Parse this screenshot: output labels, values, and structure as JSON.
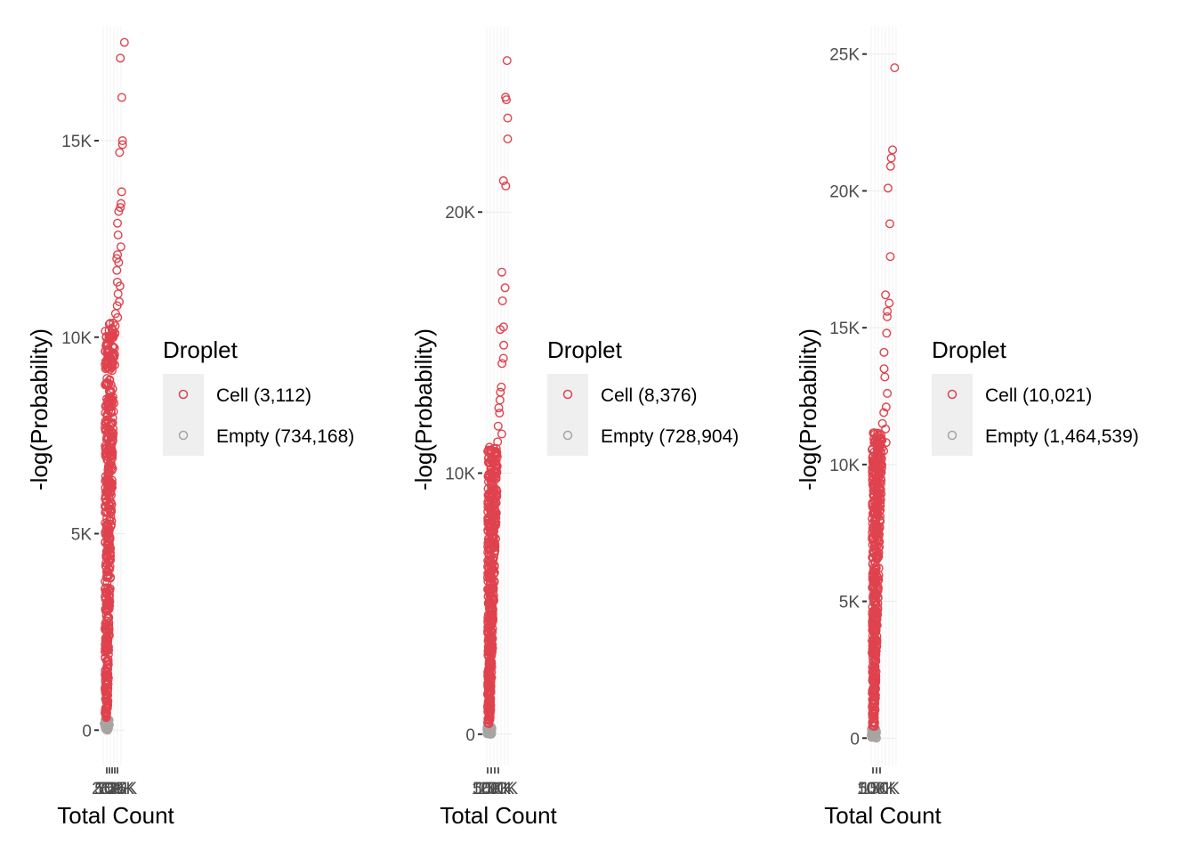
{
  "colors": {
    "cell": "#DF434E",
    "empty": "#A8A4A1",
    "grid": "#EBEBEB",
    "legend_key_bg": "#EFEFEF",
    "text": "#000000",
    "tick_text": "#4D4D4D"
  },
  "chart_data": [
    {
      "type": "scatter",
      "xlabel": "Total Count",
      "ylabel": "-log(Probability)",
      "ylim": [
        -900,
        17900
      ],
      "yticks": [
        0,
        5000,
        10000,
        15000
      ],
      "ytick_labels": [
        "0",
        "5K",
        "10K",
        "15K"
      ],
      "xtick_labels": [
        "25K",
        "50K",
        "75K",
        "100K",
        "125K"
      ],
      "grid": true,
      "legend": {
        "title": "Droplet",
        "placement": "right",
        "entries": [
          {
            "label": "Cell (3,112)",
            "color": "#DF434E"
          },
          {
            "label": "Empty (734,168)",
            "color": "#A8A4A1"
          }
        ]
      },
      "series": [
        {
          "name": "Cell (3,112)",
          "y_range": [
            300,
            10400
          ],
          "points": [
            17500,
            17100,
            16100,
            15000,
            14900,
            14700,
            13700,
            13400,
            13300,
            13200,
            12900,
            12600,
            12300,
            12100,
            12000,
            11900,
            11700,
            11400,
            11300,
            11100,
            10900,
            10800,
            10600,
            10500
          ]
        },
        {
          "name": "Empty (734,168)",
          "y_range": [
            0,
            300
          ]
        }
      ]
    },
    {
      "type": "scatter",
      "xlabel": "Total Count",
      "ylabel": "-log(Probability)",
      "ylim": [
        -1200,
        27100
      ],
      "yticks": [
        0,
        10000,
        20000
      ],
      "ytick_labels": [
        "0",
        "10K",
        "20K"
      ],
      "xtick_labels": [
        "50K",
        "100K",
        "150K",
        "200K"
      ],
      "grid": true,
      "legend": {
        "title": "Droplet",
        "placement": "right",
        "entries": [
          {
            "label": "Cell (8,376)",
            "color": "#DF434E"
          },
          {
            "label": "Empty (728,904)",
            "color": "#A8A4A1"
          }
        ]
      },
      "series": [
        {
          "name": "Cell (8,376)",
          "y_range": [
            400,
            11000
          ],
          "points": [
            25800,
            24400,
            24300,
            23600,
            22800,
            21200,
            21000,
            17700,
            17100,
            16600,
            15600,
            15500,
            14900,
            14400,
            14200,
            13300,
            13100,
            12800,
            12500,
            12300,
            11800,
            11500,
            11200
          ]
        },
        {
          "name": "Empty (728,904)",
          "y_range": [
            0,
            300
          ]
        }
      ]
    },
    {
      "type": "scatter",
      "xlabel": "Total Count",
      "ylabel": "-log(Probability)",
      "ylim": [
        -1000,
        26000
      ],
      "yticks": [
        0,
        5000,
        10000,
        15000,
        20000,
        25000
      ],
      "ytick_labels": [
        "0",
        "5K",
        "10K",
        "15K",
        "20K",
        "25K"
      ],
      "xtick_labels": [
        "50K",
        "100K",
        "150K"
      ],
      "grid": true,
      "legend": {
        "title": "Droplet",
        "placement": "right",
        "entries": [
          {
            "label": "Cell (10,021)",
            "color": "#DF434E"
          },
          {
            "label": "Empty (1,464,539)",
            "color": "#A8A4A1"
          }
        ]
      },
      "series": [
        {
          "name": "Cell (10,021)",
          "y_range": [
            400,
            11200
          ],
          "points": [
            24500,
            21500,
            21200,
            20900,
            20100,
            18800,
            17600,
            16200,
            15900,
            15600,
            15400,
            14800,
            14100,
            13500,
            13200,
            12600,
            12100,
            11900,
            11500,
            11300,
            10800,
            10500
          ]
        },
        {
          "name": "Empty (1,464,539)",
          "y_range": [
            0,
            350
          ]
        }
      ]
    }
  ]
}
